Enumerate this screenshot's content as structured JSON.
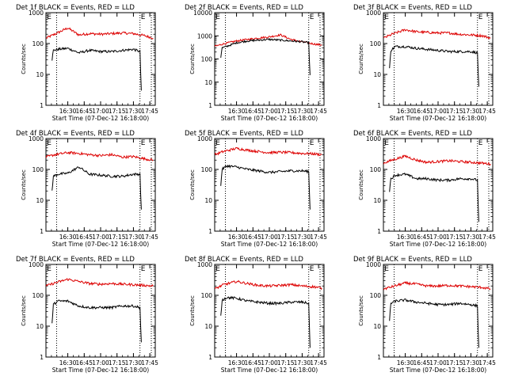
{
  "figure": {
    "background": "#ffffff",
    "events_color": "#000000",
    "lld_color": "#dd0000"
  },
  "chart_data": [
    {
      "type": "line",
      "title": "Det 1f BLACK = Events, RED = LLD",
      "xlabel": "Start Time (07-Dec-12 16:18:00)",
      "ylabel": "Counts/sec",
      "yscale": "log",
      "ylim": [
        1,
        1000
      ],
      "xlim": [
        16.167,
        17.833
      ],
      "x_ticks": [
        "16:30",
        "16:45",
        "17:00",
        "17:15",
        "17:30",
        "17:45"
      ],
      "y_ticks": [
        "1",
        "10",
        "100",
        "1000"
      ],
      "markers": [
        {
          "label": "E",
          "x": 16.17
        },
        {
          "label": "E",
          "x": 17.6
        }
      ],
      "vlines": [
        16.33,
        17.6
      ],
      "series": [
        {
          "name": "LLD",
          "color": "#dd0000",
          "x": [
            16.17,
            16.3,
            16.5,
            16.67,
            16.83,
            17.0,
            17.17,
            17.33,
            17.5,
            17.67,
            17.8
          ],
          "y": [
            150,
            200,
            320,
            190,
            210,
            200,
            210,
            220,
            210,
            180,
            150
          ]
        },
        {
          "name": "Events",
          "color": "#000000",
          "x": [
            16.26,
            16.28,
            16.35,
            16.5,
            16.67,
            16.83,
            17.0,
            17.17,
            17.33,
            17.5,
            17.6,
            17.62
          ],
          "y": [
            30,
            60,
            65,
            70,
            50,
            60,
            55,
            55,
            60,
            65,
            55,
            3
          ]
        }
      ]
    },
    {
      "type": "line",
      "title": "Det 2f BLACK = Events, RED = LLD",
      "xlabel": "Start Time (07-Dec-12 16:18:00)",
      "ylabel": "Counts/sec",
      "yscale": "log",
      "ylim": [
        1,
        10000
      ],
      "xlim": [
        16.167,
        17.833
      ],
      "x_ticks": [
        "16:30",
        "16:45",
        "17:00",
        "17:15",
        "17:30",
        "17:45"
      ],
      "y_ticks": [
        "1",
        "10",
        "100",
        "1000",
        "10000"
      ],
      "markers": [
        {
          "label": "E",
          "x": 16.17
        },
        {
          "label": "E",
          "x": 17.6
        }
      ],
      "vlines": [
        16.33,
        17.6
      ],
      "series": [
        {
          "name": "LLD",
          "color": "#dd0000",
          "x": [
            16.17,
            16.3,
            16.5,
            16.67,
            16.83,
            17.0,
            17.17,
            17.33,
            17.5,
            17.67,
            17.8
          ],
          "y": [
            350,
            450,
            600,
            700,
            800,
            900,
            1100,
            700,
            550,
            450,
            400
          ]
        },
        {
          "name": "Events",
          "color": "#000000",
          "x": [
            16.26,
            16.28,
            16.35,
            16.5,
            16.67,
            16.83,
            17.0,
            17.17,
            17.33,
            17.5,
            17.6,
            17.62
          ],
          "y": [
            120,
            300,
            350,
            500,
            600,
            650,
            700,
            650,
            600,
            550,
            500,
            20
          ]
        }
      ]
    },
    {
      "type": "line",
      "title": "Det 3f BLACK = Events, RED = LLD",
      "xlabel": "Start Time (07-Dec-12 16:18:00)",
      "ylabel": "Counts/sec",
      "yscale": "log",
      "ylim": [
        1,
        1000
      ],
      "xlim": [
        16.167,
        17.833
      ],
      "x_ticks": [
        "16:30",
        "16:45",
        "17:00",
        "17:15",
        "17:30",
        "17:45"
      ],
      "y_ticks": [
        "1",
        "10",
        "100",
        "1000"
      ],
      "markers": [
        {
          "label": "E",
          "x": 16.17
        },
        {
          "label": "E",
          "x": 17.6
        }
      ],
      "vlines": [
        16.33,
        17.6
      ],
      "series": [
        {
          "name": "LLD",
          "color": "#dd0000",
          "x": [
            16.17,
            16.3,
            16.5,
            16.67,
            16.83,
            17.0,
            17.17,
            17.33,
            17.5,
            17.67,
            17.8
          ],
          "y": [
            150,
            200,
            280,
            240,
            230,
            220,
            220,
            200,
            190,
            180,
            150
          ]
        },
        {
          "name": "Events",
          "color": "#000000",
          "x": [
            16.26,
            16.28,
            16.35,
            16.5,
            16.67,
            16.83,
            17.0,
            17.17,
            17.33,
            17.5,
            17.6,
            17.62
          ],
          "y": [
            15,
            60,
            80,
            80,
            70,
            65,
            60,
            55,
            55,
            55,
            50,
            4
          ]
        }
      ]
    },
    {
      "type": "line",
      "title": "Det 4f BLACK = Events, RED = LLD",
      "xlabel": "Start Time (07-Dec-12 16:18:00)",
      "ylabel": "Counts/sec",
      "yscale": "log",
      "ylim": [
        1,
        1000
      ],
      "xlim": [
        16.167,
        17.833
      ],
      "x_ticks": [
        "16:30",
        "16:45",
        "17:00",
        "17:15",
        "17:30",
        "17:45"
      ],
      "y_ticks": [
        "1",
        "10",
        "100",
        "1000"
      ],
      "markers": [
        {
          "label": "E",
          "x": 16.17
        },
        {
          "label": "E",
          "x": 17.6
        }
      ],
      "vlines": [
        16.33,
        17.6
      ],
      "series": [
        {
          "name": "LLD",
          "color": "#dd0000",
          "x": [
            16.17,
            16.3,
            16.5,
            16.67,
            16.83,
            17.0,
            17.17,
            17.33,
            17.5,
            17.67,
            17.8
          ],
          "y": [
            250,
            300,
            350,
            330,
            300,
            280,
            300,
            250,
            260,
            220,
            200
          ]
        },
        {
          "name": "Events",
          "color": "#000000",
          "x": [
            16.26,
            16.28,
            16.35,
            16.5,
            16.67,
            16.83,
            17.0,
            17.17,
            17.33,
            17.5,
            17.6,
            17.62
          ],
          "y": [
            20,
            60,
            70,
            75,
            120,
            70,
            65,
            60,
            60,
            70,
            70,
            5
          ]
        }
      ]
    },
    {
      "type": "line",
      "title": "Det 5f BLACK = Events, RED = LLD",
      "xlabel": "Start Time (07-Dec-12 16:18:00)",
      "ylabel": "Counts/sec",
      "yscale": "log",
      "ylim": [
        1,
        1000
      ],
      "xlim": [
        16.167,
        17.833
      ],
      "x_ticks": [
        "16:30",
        "16:45",
        "17:00",
        "17:15",
        "17:30",
        "17:45"
      ],
      "y_ticks": [
        "1",
        "10",
        "100",
        "1000"
      ],
      "markers": [
        {
          "label": "E",
          "x": 16.17
        },
        {
          "label": "E",
          "x": 17.6
        }
      ],
      "vlines": [
        16.33,
        17.6
      ],
      "series": [
        {
          "name": "LLD",
          "color": "#dd0000",
          "x": [
            16.17,
            16.3,
            16.5,
            16.67,
            16.83,
            17.0,
            17.17,
            17.33,
            17.5,
            17.67,
            17.8
          ],
          "y": [
            300,
            380,
            480,
            420,
            380,
            350,
            360,
            350,
            330,
            320,
            300
          ]
        },
        {
          "name": "Events",
          "color": "#000000",
          "x": [
            16.26,
            16.28,
            16.35,
            16.5,
            16.67,
            16.83,
            17.0,
            17.17,
            17.33,
            17.5,
            17.6,
            17.62
          ],
          "y": [
            30,
            100,
            130,
            120,
            100,
            90,
            80,
            85,
            90,
            90,
            85,
            5
          ]
        }
      ]
    },
    {
      "type": "line",
      "title": "Det 6f BLACK = Events, RED = LLD",
      "xlabel": "Start Time (07-Dec-12 16:18:00)",
      "ylabel": "Counts/sec",
      "yscale": "log",
      "ylim": [
        1,
        1000
      ],
      "xlim": [
        16.167,
        17.833
      ],
      "x_ticks": [
        "16:30",
        "16:45",
        "17:00",
        "17:15",
        "17:30",
        "17:45"
      ],
      "y_ticks": [
        "1",
        "10",
        "100",
        "1000"
      ],
      "markers": [
        {
          "label": "E",
          "x": 16.17
        },
        {
          "label": "E",
          "x": 17.6
        }
      ],
      "vlines": [
        16.33,
        17.6
      ],
      "series": [
        {
          "name": "LLD",
          "color": "#dd0000",
          "x": [
            16.17,
            16.3,
            16.5,
            16.67,
            16.83,
            17.0,
            17.17,
            17.33,
            17.5,
            17.67,
            17.8
          ],
          "y": [
            160,
            200,
            270,
            200,
            170,
            180,
            190,
            180,
            170,
            160,
            150
          ]
        },
        {
          "name": "Events",
          "color": "#000000",
          "x": [
            16.26,
            16.28,
            16.35,
            16.5,
            16.67,
            16.83,
            17.0,
            17.17,
            17.33,
            17.5,
            17.6,
            17.62
          ],
          "y": [
            20,
            50,
            65,
            70,
            50,
            50,
            45,
            45,
            50,
            50,
            45,
            2
          ]
        }
      ]
    },
    {
      "type": "line",
      "title": "Det 7f BLACK = Events, RED = LLD",
      "xlabel": "Start Time (07-Dec-12 16:18:00)",
      "ylabel": "Counts/sec",
      "yscale": "log",
      "ylim": [
        1,
        1000
      ],
      "xlim": [
        16.167,
        17.833
      ],
      "x_ticks": [
        "16:30",
        "16:45",
        "17:00",
        "17:15",
        "17:30",
        "17:45"
      ],
      "y_ticks": [
        "1",
        "10",
        "100",
        "1000"
      ],
      "markers": [
        {
          "label": "E",
          "x": 16.17
        },
        {
          "label": "E",
          "x": 17.6
        }
      ],
      "vlines": [
        16.33,
        17.6
      ],
      "series": [
        {
          "name": "LLD",
          "color": "#dd0000",
          "x": [
            16.17,
            16.3,
            16.5,
            16.67,
            16.83,
            17.0,
            17.17,
            17.33,
            17.5,
            17.67,
            17.8
          ],
          "y": [
            200,
            250,
            330,
            280,
            240,
            230,
            240,
            230,
            220,
            210,
            200
          ]
        },
        {
          "name": "Events",
          "color": "#000000",
          "x": [
            16.26,
            16.28,
            16.35,
            16.5,
            16.67,
            16.83,
            17.0,
            17.17,
            17.33,
            17.5,
            17.6,
            17.62
          ],
          "y": [
            12,
            50,
            65,
            65,
            45,
            40,
            40,
            40,
            45,
            45,
            40,
            3
          ]
        }
      ]
    },
    {
      "type": "line",
      "title": "Det 8f BLACK = Events, RED = LLD",
      "xlabel": "Start Time (07-Dec-12 16:18:00)",
      "ylabel": "Counts/sec",
      "yscale": "log",
      "ylim": [
        1,
        1000
      ],
      "xlim": [
        16.167,
        17.833
      ],
      "x_ticks": [
        "16:30",
        "16:45",
        "17:00",
        "17:15",
        "17:30",
        "17:45"
      ],
      "y_ticks": [
        "1",
        "10",
        "100",
        "1000"
      ],
      "markers": [
        {
          "label": "E",
          "x": 16.17
        },
        {
          "label": "E",
          "x": 17.6
        }
      ],
      "vlines": [
        16.33,
        17.6
      ],
      "series": [
        {
          "name": "LLD",
          "color": "#dd0000",
          "x": [
            16.17,
            16.3,
            16.5,
            16.67,
            16.83,
            17.0,
            17.17,
            17.33,
            17.5,
            17.67,
            17.8
          ],
          "y": [
            160,
            220,
            280,
            240,
            210,
            200,
            210,
            220,
            200,
            190,
            170
          ]
        },
        {
          "name": "Events",
          "color": "#000000",
          "x": [
            16.26,
            16.28,
            16.35,
            16.5,
            16.67,
            16.83,
            17.0,
            17.17,
            17.33,
            17.5,
            17.6,
            17.62
          ],
          "y": [
            20,
            70,
            85,
            80,
            65,
            60,
            55,
            55,
            60,
            60,
            55,
            2
          ]
        }
      ]
    },
    {
      "type": "line",
      "title": "Det 9f BLACK = Events, RED = LLD",
      "xlabel": "Start Time (07-Dec-12 16:18:00)",
      "ylabel": "Counts/sec",
      "yscale": "log",
      "ylim": [
        1,
        1000
      ],
      "xlim": [
        16.167,
        17.833
      ],
      "x_ticks": [
        "16:30",
        "16:45",
        "17:00",
        "17:15",
        "17:30",
        "17:45"
      ],
      "y_ticks": [
        "1",
        "10",
        "100",
        "1000"
      ],
      "markers": [
        {
          "label": "E",
          "x": 16.17
        },
        {
          "label": "E",
          "x": 17.6
        }
      ],
      "vlines": [
        16.33,
        17.6
      ],
      "series": [
        {
          "name": "LLD",
          "color": "#dd0000",
          "x": [
            16.17,
            16.3,
            16.5,
            16.67,
            16.83,
            17.0,
            17.17,
            17.33,
            17.5,
            17.67,
            17.8
          ],
          "y": [
            160,
            190,
            250,
            230,
            200,
            200,
            210,
            200,
            190,
            180,
            160
          ]
        },
        {
          "name": "Events",
          "color": "#000000",
          "x": [
            16.26,
            16.28,
            16.35,
            16.5,
            16.67,
            16.83,
            17.0,
            17.17,
            17.33,
            17.5,
            17.6,
            17.62
          ],
          "y": [
            15,
            55,
            65,
            70,
            60,
            55,
            50,
            50,
            55,
            50,
            45,
            2
          ]
        }
      ]
    }
  ]
}
